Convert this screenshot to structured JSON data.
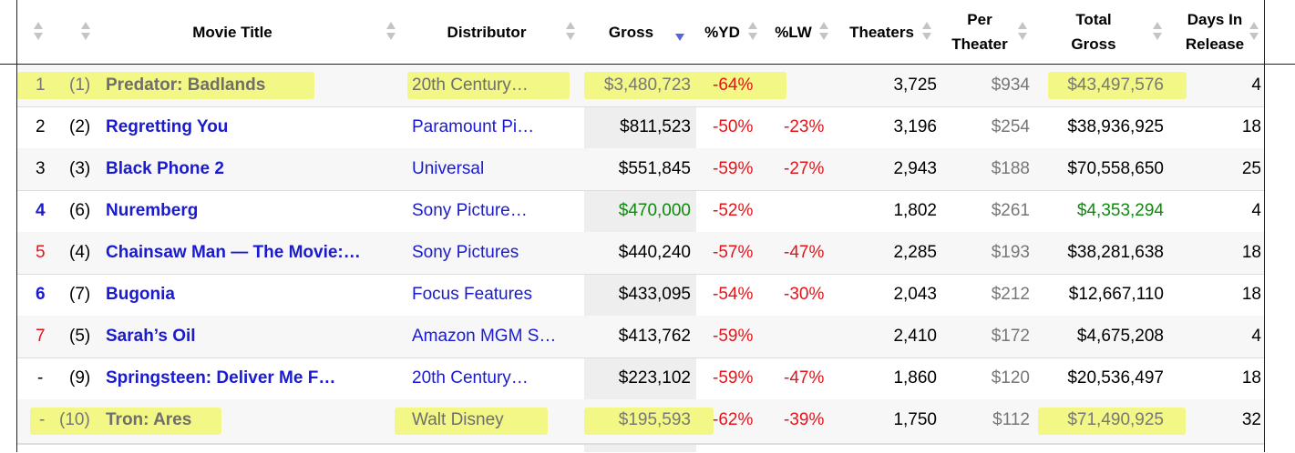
{
  "headers": {
    "title": "Movie Title",
    "distributor": "Distributor",
    "gross": "Gross",
    "yd": "%YD",
    "lw": "%LW",
    "theaters": "Theaters",
    "per_theater_1": "Per",
    "per_theater_2": "Theater",
    "total_1": "Total",
    "total_2": "Gross",
    "days_1": "Days In",
    "days_2": "Release"
  },
  "sort": {
    "column": "Gross",
    "direction": "descending"
  },
  "rows": [
    {
      "rank": "1",
      "prev": "(1)",
      "title": "Predator: Badlands",
      "distributor": "20th Century…",
      "gross": "$3,480,723",
      "yd": "-64%",
      "lw": "",
      "theaters": "3,725",
      "per_theater": "$934",
      "total_gross": "$43,497,576",
      "days": "4",
      "highlighted": true
    },
    {
      "rank": "2",
      "prev": "(2)",
      "title": "Regretting You",
      "distributor": "Paramount Pi…",
      "gross": "$811,523",
      "yd": "-50%",
      "lw": "-23%",
      "theaters": "3,196",
      "per_theater": "$254",
      "total_gross": "$38,936,925",
      "days": "18",
      "highlighted": false
    },
    {
      "rank": "3",
      "prev": "(3)",
      "title": "Black Phone 2",
      "distributor": "Universal",
      "gross": "$551,845",
      "yd": "-59%",
      "lw": "-27%",
      "theaters": "2,943",
      "per_theater": "$188",
      "total_gross": "$70,558,650",
      "days": "25",
      "highlighted": false
    },
    {
      "rank": "4",
      "prev": "(6)",
      "title": "Nuremberg",
      "distributor": "Sony Picture…",
      "gross": "$470,000",
      "yd": "-52%",
      "lw": "",
      "theaters": "1,802",
      "per_theater": "$261",
      "total_gross": "$4,353,294",
      "days": "4",
      "highlighted": false
    },
    {
      "rank": "5",
      "prev": "(4)",
      "title": "Chainsaw Man — The Movie:…",
      "distributor": "Sony Pictures",
      "gross": "$440,240",
      "yd": "-57%",
      "lw": "-47%",
      "theaters": "2,285",
      "per_theater": "$193",
      "total_gross": "$38,281,638",
      "days": "18",
      "highlighted": false
    },
    {
      "rank": "6",
      "prev": "(7)",
      "title": "Bugonia",
      "distributor": "Focus Features",
      "gross": "$433,095",
      "yd": "-54%",
      "lw": "-30%",
      "theaters": "2,043",
      "per_theater": "$212",
      "total_gross": "$12,667,110",
      "days": "18",
      "highlighted": false
    },
    {
      "rank": "7",
      "prev": "(5)",
      "title": "Sarah’s Oil",
      "distributor": "Amazon MGM S…",
      "gross": "$413,762",
      "yd": "-59%",
      "lw": "",
      "theaters": "2,410",
      "per_theater": "$172",
      "total_gross": "$4,675,208",
      "days": "4",
      "highlighted": false
    },
    {
      "rank": "-",
      "prev": "(9)",
      "title": "Springsteen: Deliver Me F…",
      "distributor": "20th Century…",
      "gross": "$223,102",
      "yd": "-59%",
      "lw": "-47%",
      "theaters": "1,860",
      "per_theater": "$120",
      "total_gross": "$20,536,497",
      "days": "18",
      "highlighted": false
    },
    {
      "rank": "-",
      "prev": "(10)",
      "title": "Tron: Ares",
      "distributor": "Walt Disney",
      "gross": "$195,593",
      "yd": "-62%",
      "lw": "-39%",
      "theaters": "1,750",
      "per_theater": "$112",
      "total_gross": "$71,490,925",
      "days": "32",
      "highlighted": true
    }
  ],
  "colors": {
    "link": "#1a1ad0",
    "negative": "#e4141a",
    "positive": "#0e8a0e",
    "highlighter": "#eef828",
    "sorted_column_bg": "#eeeeee"
  },
  "icons": {
    "sort": "sort-arrows-icon",
    "sort_active": "sort-descending-icon"
  }
}
